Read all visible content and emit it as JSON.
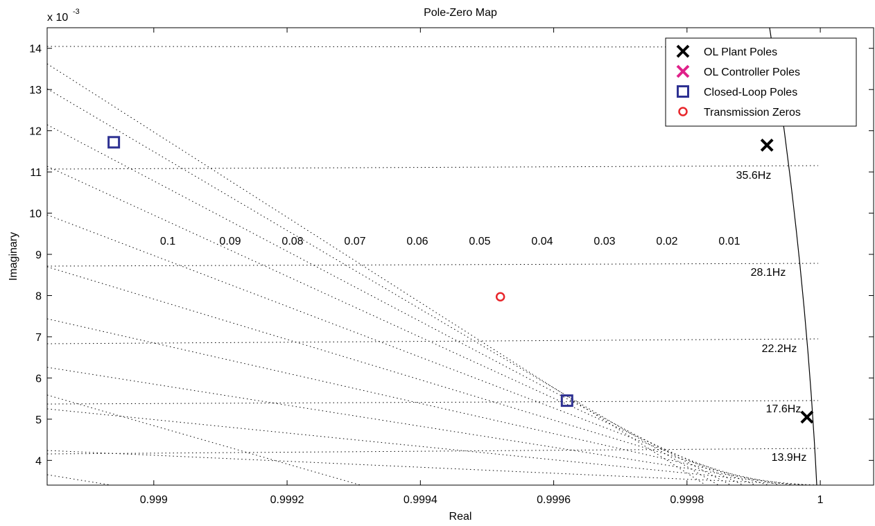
{
  "chart_data": {
    "type": "scatter",
    "title": "Pole-Zero Map",
    "xlabel": "Real",
    "ylabel": "Imaginary",
    "y_multiplier_label": "x 10",
    "y_multiplier_exponent": "-3",
    "xlim": [
      0.99884,
      1.00008
    ],
    "ylim": [
      3.4,
      14.5
    ],
    "x_ticks": [
      0.999,
      0.9992,
      0.9994,
      0.9996,
      0.9998,
      1.0
    ],
    "x_tick_labels": [
      "0.999",
      "0.9992",
      "0.9994",
      "0.9996",
      "0.9998",
      "1"
    ],
    "y_ticks": [
      4,
      5,
      6,
      7,
      8,
      9,
      10,
      11,
      12,
      13,
      14
    ],
    "y_tick_labels": [
      "4",
      "5",
      "6",
      "7",
      "8",
      "9",
      "10",
      "11",
      "12",
      "13",
      "14"
    ],
    "grid": true,
    "legend_position": "top-right",
    "series": [
      {
        "name": "OL Plant Poles",
        "marker": "x",
        "color": "#000000",
        "points": [
          [
            0.99992,
            11.65
          ],
          [
            0.99998,
            5.05
          ]
        ]
      },
      {
        "name": "OL Controller Poles",
        "marker": "x",
        "color": "#e0218a",
        "points": []
      },
      {
        "name": "Closed-Loop Poles",
        "marker": "square",
        "color": "#2e3192",
        "points": [
          [
            0.99894,
            11.72
          ],
          [
            0.99962,
            5.45
          ]
        ]
      },
      {
        "name": "Transmission Zeros",
        "marker": "circle",
        "color": "#e8262b",
        "points": [
          [
            0.99952,
            7.97
          ]
        ]
      }
    ],
    "damping_labels": [
      "0.1",
      "0.09",
      "0.08",
      "0.07",
      "0.06",
      "0.05",
      "0.04",
      "0.03",
      "0.02",
      "0.01"
    ],
    "frequency_labels": [
      "35.6Hz",
      "28.1Hz",
      "22.2Hz",
      "17.6Hz",
      "13.9Hz"
    ]
  }
}
